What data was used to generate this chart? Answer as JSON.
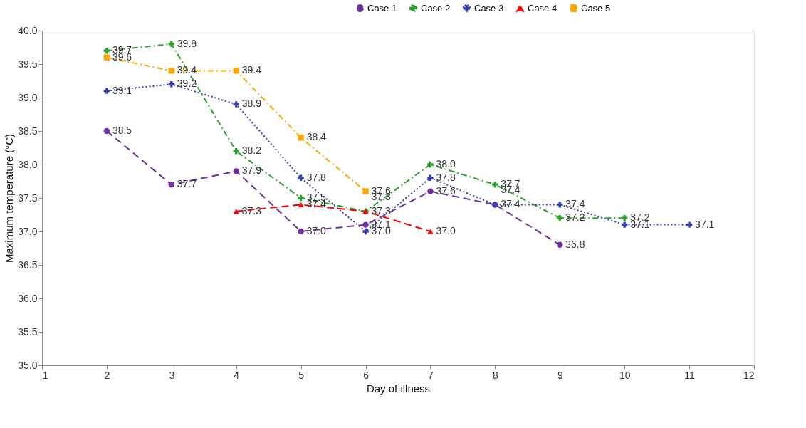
{
  "chart_data": {
    "type": "line",
    "xlabel": "Day of illness",
    "ylabel": "Maximum temperature (°C)",
    "xlim": [
      1,
      12
    ],
    "xticks": [
      1,
      2,
      3,
      4,
      5,
      6,
      7,
      8,
      9,
      10,
      11,
      12
    ],
    "ylim": [
      35,
      40
    ],
    "yticks": [
      {
        "value": 35,
        "label": "35.0"
      },
      35.5,
      {
        "value": 36,
        "label": "36.0"
      },
      36.5,
      {
        "value": 37,
        "label": "37.0"
      },
      37.5,
      {
        "value": 38,
        "label": "38.0"
      },
      38.5,
      {
        "value": 39,
        "label": "39.0"
      },
      39.5,
      {
        "value": 40,
        "label": "40.0"
      }
    ],
    "grid": false,
    "legend": "top right",
    "series": [
      {
        "name": "Case 1",
        "color": "#7030a0",
        "marker": "circle",
        "line_style": "dashed",
        "x": [
          2,
          3,
          4,
          5,
          6,
          7,
          8,
          9
        ],
        "values": [
          38.5,
          37.7,
          37.9,
          37.0,
          37.1,
          37.6,
          37.4,
          36.8
        ],
        "value_labels": [
          "38.5",
          "37.7",
          "37.9",
          "37.0",
          "37.1",
          "37.6",
          "37.4",
          "36.8"
        ]
      },
      {
        "name": "Case 2",
        "color": "#2ca02c",
        "marker": "cross",
        "line_style": "dashdot",
        "x": [
          2,
          3,
          4,
          5,
          6,
          7,
          8,
          9,
          10
        ],
        "values": [
          39.7,
          39.8,
          38.2,
          37.5,
          37.3,
          38.0,
          37.7,
          37.2,
          37.2
        ],
        "value_labels": [
          "39.7",
          "39.8",
          "38.2",
          "37.5",
          "37.3",
          "38.0",
          "37.7",
          "37.2",
          "37.2"
        ]
      },
      {
        "name": "Case 3",
        "color": "#3040b0",
        "marker": "cross",
        "line_style": "dotted",
        "x": [
          2,
          3,
          4,
          5,
          6,
          7,
          8,
          9,
          10,
          11
        ],
        "values": [
          39.1,
          39.2,
          38.9,
          37.8,
          37.0,
          37.8,
          37.4,
          37.4,
          37.1,
          37.1
        ],
        "value_labels": [
          "39.1",
          "39.2",
          "38.9",
          "37.8",
          "37.0",
          "37.8",
          "37.4",
          "37.4",
          "37.1",
          "37.1"
        ]
      },
      {
        "name": "Case 4",
        "color": "#ff0000",
        "marker": "triangle",
        "line_style": "dashed",
        "x": [
          4,
          5,
          6,
          7
        ],
        "values": [
          37.3,
          37.4,
          37.3,
          37.0
        ],
        "value_labels": [
          "37.3",
          "37.4",
          "37.3",
          "37.0"
        ]
      },
      {
        "name": "Case 5",
        "color": "#ffa500",
        "marker": "square",
        "line_style": "dashdot",
        "x": [
          2,
          3,
          4,
          5,
          6
        ],
        "values": [
          39.6,
          39.4,
          39.4,
          38.4,
          37.6
        ],
        "value_labels": [
          "39.6",
          "39.4",
          "39.4",
          "38.4",
          "37.6"
        ]
      }
    ]
  }
}
